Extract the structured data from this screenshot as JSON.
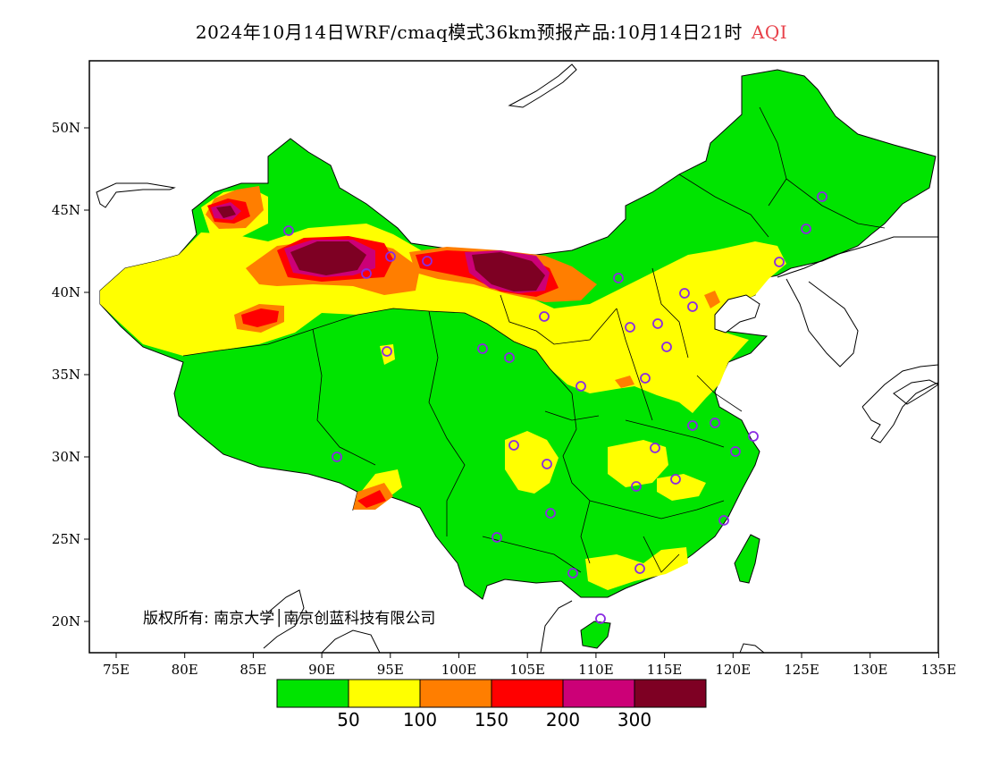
{
  "title": {
    "main": "2024年10月14日WRF/cmaq模式36km预报产品:10月14日21时",
    "product": "AQI",
    "product_color": "#e8414a"
  },
  "axes": {
    "lat_ticks": [
      "50N",
      "45N",
      "40N",
      "35N",
      "30N",
      "25N",
      "20N"
    ],
    "lon_ticks": [
      "75E",
      "80E",
      "85E",
      "90E",
      "95E",
      "100E",
      "105E",
      "110E",
      "115E",
      "120E",
      "125E",
      "130E",
      "135E"
    ]
  },
  "copyright": "版权所有: 南京大学│南京创蓝科技有限公司",
  "colorbar": {
    "colors": [
      "#00e400",
      "#ffff00",
      "#ff7e00",
      "#ff0000",
      "#cc0077",
      "#7e0023"
    ],
    "labels": [
      "50",
      "100",
      "150",
      "200",
      "300"
    ]
  },
  "stations": {
    "marker_color": "#8a2be2",
    "marker_shape": "circle"
  }
}
